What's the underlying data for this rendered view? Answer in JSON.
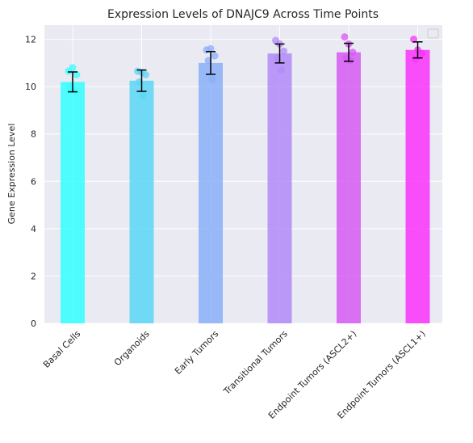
{
  "chart_data": {
    "type": "bar",
    "title": "Expression Levels of DNAJC9 Across Time Points",
    "xlabel": "",
    "ylabel": "Gene Expression Level",
    "ylim": [
      0,
      12.6
    ],
    "yticks": [
      0,
      2,
      4,
      6,
      8,
      10,
      12
    ],
    "grid": true,
    "legend": {
      "placement": "top-right",
      "entries": []
    },
    "categories": [
      "Basal Cells",
      "Organoids",
      "Early Tumors",
      "Transitional Tumors",
      "Endpoint Tumors (ASCL2+)",
      "Endpoint Tumors (ASCL1+)"
    ],
    "values": [
      10.2,
      10.25,
      11.0,
      11.4,
      11.45,
      11.55
    ],
    "errors": [
      0.42,
      0.45,
      0.48,
      0.4,
      0.38,
      0.34
    ],
    "colors": [
      "#33ffff",
      "#5ad6f7",
      "#89aff9",
      "#b189f8",
      "#d65af5",
      "#f933fb"
    ],
    "points": [
      [
        10.65,
        10.8,
        10.5,
        10.0,
        9.85
      ],
      [
        10.65,
        10.6,
        10.5,
        10.2,
        9.6
      ],
      [
        11.55,
        11.6,
        11.3,
        11.1,
        10.3
      ],
      [
        11.95,
        11.8,
        11.5,
        11.2,
        10.7
      ],
      [
        12.1,
        11.8,
        11.45,
        11.2,
        11.1
      ],
      [
        12.0,
        11.55,
        11.4,
        11.15
      ]
    ]
  }
}
